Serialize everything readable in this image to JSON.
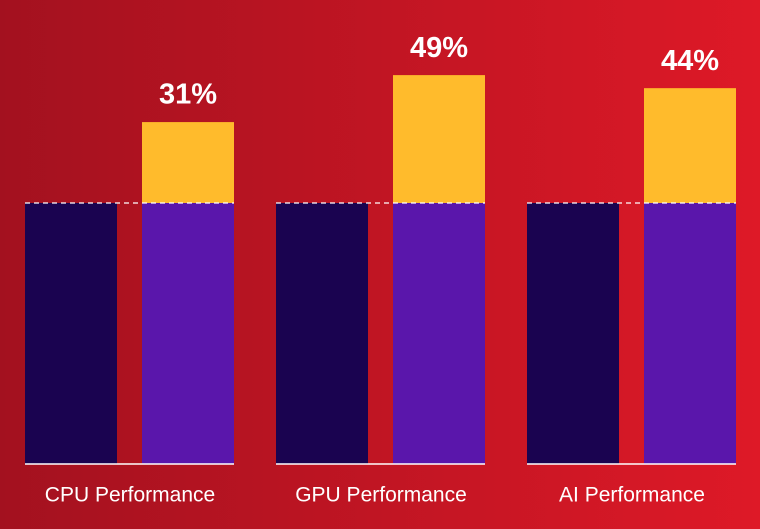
{
  "chart_data": {
    "type": "bar",
    "categories": [
      "CPU Performance",
      "GPU Performance",
      "AI Performance"
    ],
    "series": [
      {
        "color": "#1a0350",
        "values": [
          100,
          100,
          100
        ]
      },
      {
        "color": "#5a16ab",
        "values": [
          100,
          100,
          100
        ]
      },
      {
        "color": "#ffbb2c",
        "values": [
          31,
          49,
          44
        ],
        "value_labels": [
          "31%",
          "49%",
          "44%"
        ],
        "stack_on": 1
      }
    ],
    "ylim": [
      0,
      160
    ]
  }
}
